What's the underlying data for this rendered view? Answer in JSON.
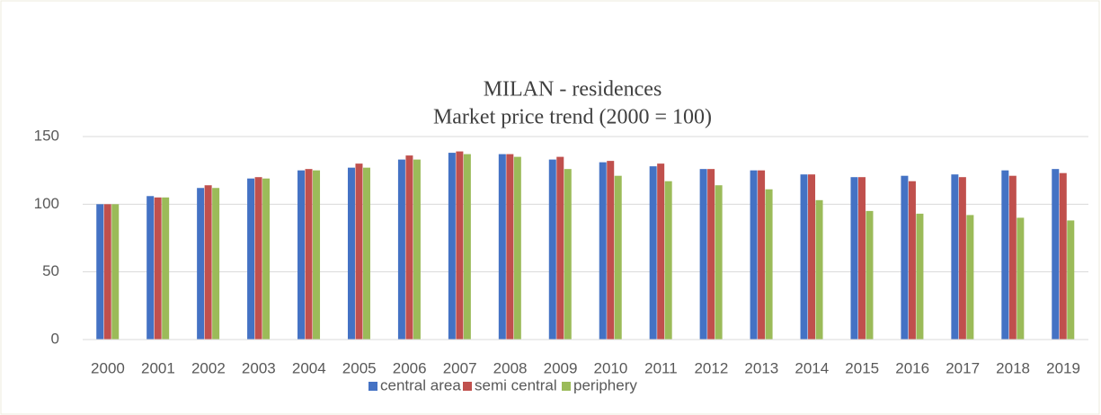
{
  "chart_data": {
    "type": "bar",
    "title": "MILAN - residences",
    "subtitle": "Market price trend (2000 = 100)",
    "categories": [
      "2000",
      "2001",
      "2002",
      "2003",
      "2004",
      "2005",
      "2006",
      "2007",
      "2008",
      "2009",
      "2010",
      "2011",
      "2012",
      "2013",
      "2014",
      "2015",
      "2016",
      "2017",
      "2018",
      "2019"
    ],
    "series": [
      {
        "name": "central area",
        "color": "#4472c4",
        "values": [
          100,
          106,
          112,
          119,
          125,
          127,
          133,
          138,
          137,
          133,
          131,
          128,
          126,
          125,
          122,
          120,
          121,
          122,
          125,
          126
        ]
      },
      {
        "name": "semi central",
        "color": "#c0504d",
        "values": [
          100,
          105,
          114,
          120,
          126,
          130,
          136,
          139,
          137,
          135,
          132,
          130,
          126,
          125,
          122,
          120,
          117,
          120,
          121,
          123
        ]
      },
      {
        "name": "periphery",
        "color": "#9bbb59",
        "values": [
          100,
          105,
          112,
          119,
          125,
          127,
          133,
          137,
          135,
          126,
          121,
          117,
          114,
          111,
          103,
          95,
          93,
          92,
          90,
          88
        ]
      }
    ],
    "ylim": [
      0,
      150
    ],
    "yticks": [
      0,
      50,
      100,
      150
    ],
    "grid": true,
    "legend": "bottom"
  }
}
